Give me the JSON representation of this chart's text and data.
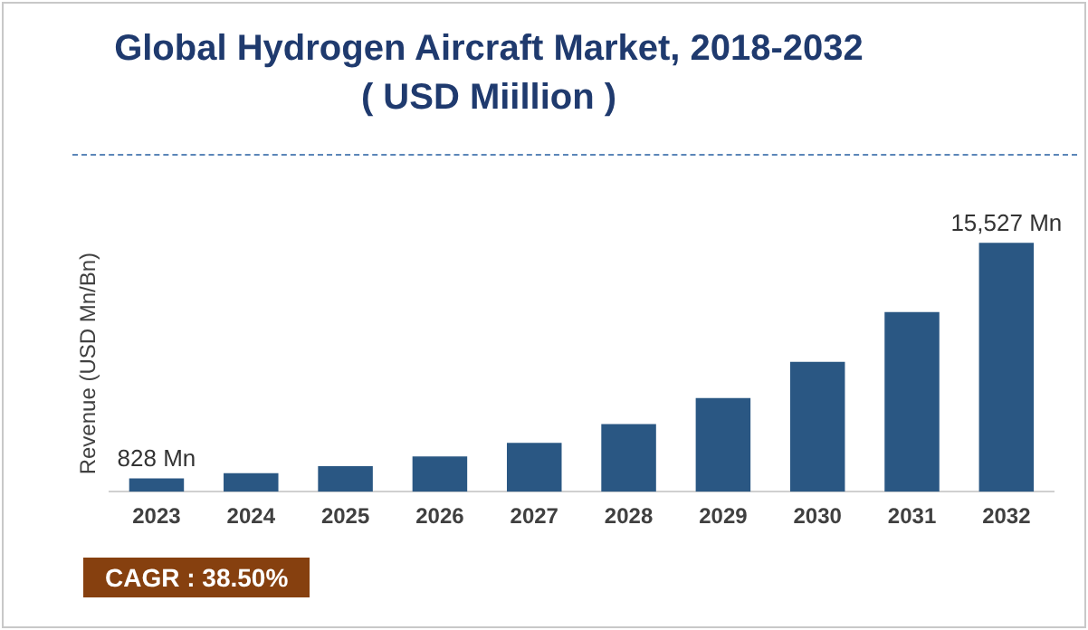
{
  "chart_data": {
    "type": "bar",
    "title": "Global Hydrogen Aircraft Market, 2018-2032 ( USD Miillion )",
    "ylabel": "Revenue (USD Mn/Bn)",
    "categories": [
      "2023",
      "2024",
      "2025",
      "2026",
      "2027",
      "2028",
      "2029",
      "2030",
      "2031",
      "2032"
    ],
    "values": [
      828,
      1150,
      1590,
      2200,
      3050,
      4220,
      5850,
      8100,
      11210,
      15527
    ],
    "value_labels": [
      "828 Mn",
      null,
      null,
      null,
      null,
      null,
      null,
      null,
      null,
      "15,527 Mn"
    ],
    "color": "#2a5783",
    "grid": false,
    "legend": false,
    "annotations": [
      "CAGR : 38.50%"
    ]
  }
}
